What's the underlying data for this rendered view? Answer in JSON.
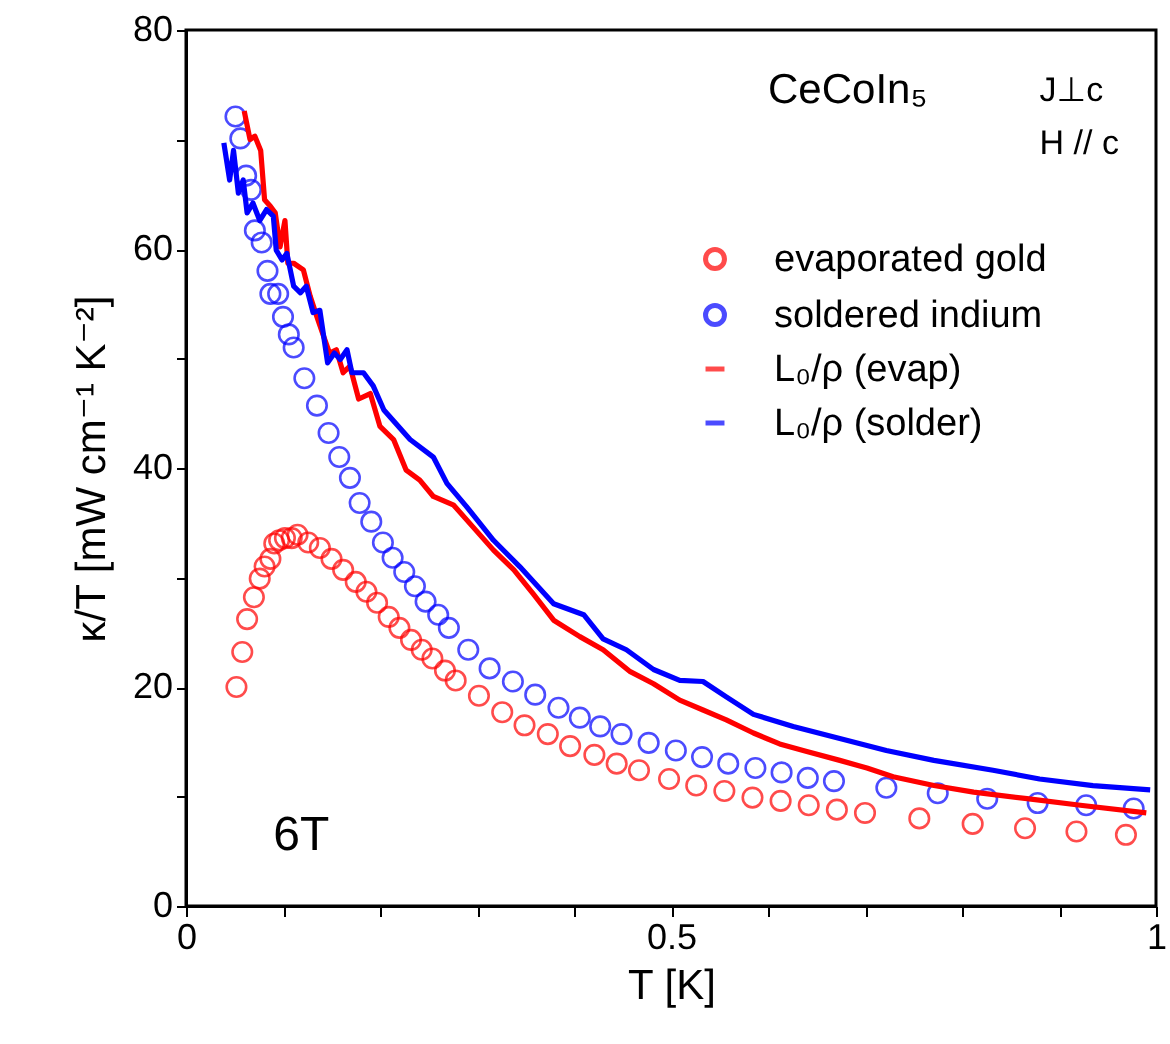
{
  "chart_data": {
    "type": "scatter",
    "xlabel": "T [K]",
    "ylabel": "κ/T [mW cm⁻¹ K⁻²]",
    "annotations": [
      "CeCoIn₅",
      "J⊥c",
      "H // c",
      "6T"
    ],
    "xlim": [
      0,
      1
    ],
    "ylim": [
      0,
      80
    ],
    "xticks": [
      0,
      {
        "value": 0.1,
        "label": null
      },
      {
        "value": 0.2,
        "label": null
      },
      {
        "value": 0.3,
        "label": null
      },
      {
        "value": 0.4,
        "label": null
      },
      0.5,
      {
        "value": 0.6,
        "label": null
      },
      {
        "value": 0.7,
        "label": null
      },
      {
        "value": 0.8,
        "label": null
      },
      {
        "value": 0.9,
        "label": null
      },
      1
    ],
    "yticks": [
      0,
      {
        "value": 10,
        "label": null
      },
      20,
      {
        "value": 30,
        "label": null
      },
      40,
      {
        "value": 50,
        "label": null
      },
      60,
      {
        "value": 70,
        "label": null
      },
      80
    ],
    "grid": false,
    "legend": "top right",
    "series": [
      {
        "name": "evaporated gold",
        "marker": "circle",
        "color": "#ff0000",
        "x": [
          0.052,
          0.058,
          0.063,
          0.07,
          0.076,
          0.081,
          0.087,
          0.091,
          0.096,
          0.102,
          0.109,
          0.115,
          0.126,
          0.138,
          0.15,
          0.162,
          0.175,
          0.186,
          0.197,
          0.209,
          0.22,
          0.232,
          0.243,
          0.254,
          0.267,
          0.278,
          0.302,
          0.326,
          0.349,
          0.373,
          0.396,
          0.421,
          0.444,
          0.467,
          0.498,
          0.526,
          0.555,
          0.584,
          0.613,
          0.642,
          0.671,
          0.7,
          0.756,
          0.811,
          0.865,
          0.918,
          0.969
        ],
        "values": [
          20.0,
          23.2,
          26.2,
          28.2,
          29.9,
          31.0,
          31.7,
          33.1,
          33.4,
          33.6,
          33.6,
          33.9,
          33.2,
          32.7,
          31.7,
          30.7,
          29.6,
          28.7,
          27.7,
          26.4,
          25.4,
          24.3,
          23.4,
          22.6,
          21.5,
          20.6,
          19.2,
          17.7,
          16.5,
          15.7,
          14.6,
          13.8,
          13.0,
          12.4,
          11.6,
          11.0,
          10.5,
          9.9,
          9.6,
          9.2,
          8.8,
          8.5,
          8.0,
          7.5,
          7.1,
          6.8,
          6.5
        ]
      },
      {
        "name": "soldered indium",
        "marker": "circle",
        "color": "#0000ff",
        "x": [
          0.051,
          0.056,
          0.062,
          0.067,
          0.071,
          0.078,
          0.084,
          0.087,
          0.095,
          0.1,
          0.106,
          0.111,
          0.122,
          0.135,
          0.147,
          0.158,
          0.169,
          0.179,
          0.191,
          0.203,
          0.213,
          0.225,
          0.236,
          0.247,
          0.26,
          0.271,
          0.291,
          0.313,
          0.337,
          0.36,
          0.384,
          0.406,
          0.427,
          0.449,
          0.477,
          0.505,
          0.532,
          0.559,
          0.587,
          0.614,
          0.641,
          0.668,
          0.722,
          0.775,
          0.826,
          0.878,
          0.928,
          0.977
        ],
        "values": [
          72.1,
          70.1,
          66.7,
          65.4,
          61.7,
          60.6,
          58.0,
          55.9,
          55.9,
          53.8,
          52.2,
          51.0,
          48.2,
          45.7,
          43.2,
          41.0,
          39.1,
          36.8,
          35.1,
          33.2,
          31.8,
          30.5,
          29.2,
          27.8,
          26.6,
          25.4,
          23.4,
          21.7,
          20.5,
          19.3,
          18.1,
          17.2,
          16.4,
          15.7,
          14.9,
          14.2,
          13.6,
          13.0,
          12.6,
          12.2,
          11.7,
          11.4,
          10.8,
          10.3,
          9.8,
          9.4,
          9.2,
          8.9
        ]
      },
      {
        "name": "L₀/ρ (evap)",
        "type": "line",
        "color": "#ff0000",
        "x": [
          0.06,
          0.066,
          0.071,
          0.077,
          0.081,
          0.087,
          0.092,
          0.097,
          0.102,
          0.105,
          0.111,
          0.121,
          0.128,
          0.135,
          0.142,
          0.148,
          0.155,
          0.162,
          0.169,
          0.178,
          0.19,
          0.2,
          0.214,
          0.227,
          0.241,
          0.255,
          0.276,
          0.296,
          0.317,
          0.338,
          0.358,
          0.379,
          0.406,
          0.43,
          0.458,
          0.482,
          0.509,
          0.533,
          0.557,
          0.585,
          0.612,
          0.64,
          0.674,
          0.702,
          0.729,
          0.771,
          0.812,
          0.867,
          0.922,
          0.99
        ],
        "values": [
          72.6,
          70.0,
          70.3,
          69.0,
          64.5,
          63.9,
          63.3,
          60.2,
          62.6,
          58.7,
          58.7,
          58.1,
          55.7,
          53.8,
          52.0,
          50.5,
          50.8,
          48.7,
          49.3,
          46.3,
          46.8,
          43.8,
          42.6,
          39.8,
          38.9,
          37.4,
          36.6,
          34.6,
          32.5,
          30.7,
          28.5,
          26.1,
          24.6,
          23.4,
          21.4,
          20.3,
          18.8,
          17.9,
          17.0,
          15.8,
          14.8,
          14.1,
          13.3,
          12.6,
          11.8,
          11.0,
          10.4,
          9.8,
          9.2,
          8.5
        ]
      },
      {
        "name": "L₀/ρ (solder)",
        "type": "line",
        "color": "#0000ff",
        "x": [
          0.039,
          0.045,
          0.049,
          0.054,
          0.059,
          0.063,
          0.069,
          0.076,
          0.083,
          0.09,
          0.093,
          0.099,
          0.104,
          0.111,
          0.118,
          0.124,
          0.131,
          0.138,
          0.146,
          0.153,
          0.159,
          0.166,
          0.171,
          0.183,
          0.193,
          0.204,
          0.231,
          0.255,
          0.269,
          0.289,
          0.317,
          0.344,
          0.379,
          0.41,
          0.43,
          0.454,
          0.482,
          0.509,
          0.533,
          0.557,
          0.585,
          0.626,
          0.674,
          0.722,
          0.771,
          0.832,
          0.88,
          0.935,
          0.994
        ],
        "values": [
          69.7,
          66.3,
          69.0,
          65.1,
          66.3,
          63.3,
          64.2,
          62.6,
          63.6,
          63.0,
          59.9,
          59.0,
          59.6,
          56.6,
          56.0,
          56.6,
          54.2,
          54.4,
          49.6,
          50.5,
          49.9,
          50.8,
          48.7,
          48.7,
          47.5,
          45.3,
          42.6,
          41.0,
          38.6,
          36.5,
          33.4,
          31.0,
          27.6,
          26.6,
          24.4,
          23.4,
          21.6,
          20.6,
          20.5,
          19.1,
          17.5,
          16.4,
          15.3,
          14.2,
          13.3,
          12.4,
          11.6,
          11.0,
          10.6
        ]
      }
    ]
  }
}
